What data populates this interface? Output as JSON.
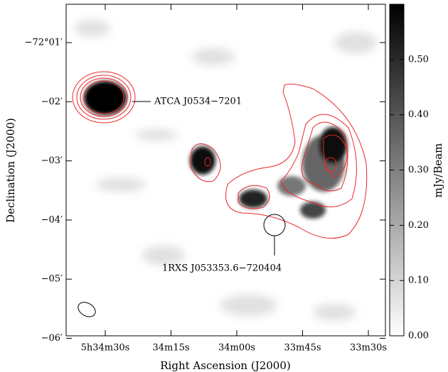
{
  "chart_data": {
    "type": "image",
    "xlabel": "Right Ascension (J2000)",
    "ylabel": "Declination (J2000)",
    "x_tick_labels": [
      "5h34m30s",
      "34m15s",
      "34m00s",
      "33m45s",
      "33m30s"
    ],
    "y_tick_labels": [
      "−72°01′",
      "−02′",
      "−03′",
      "−04′",
      "−05′",
      "−06′"
    ],
    "annotations": [
      "ATCA J0534−7201",
      "1RXS J053353.6−720404"
    ],
    "colorbar": {
      "label": "mJy/Beam",
      "lim": [
        0,
        0.6
      ],
      "ticks": [
        {
          "value": 0,
          "label": "0.00"
        },
        {
          "value": 0.1,
          "label": "0.10"
        },
        {
          "value": 0.2,
          "label": "0.20"
        },
        {
          "value": 0.3,
          "label": "0.30"
        },
        {
          "value": 0.4,
          "label": "0.40"
        },
        {
          "value": 0.5,
          "label": "0.50"
        }
      ]
    },
    "contour_color": "#e8262a"
  }
}
